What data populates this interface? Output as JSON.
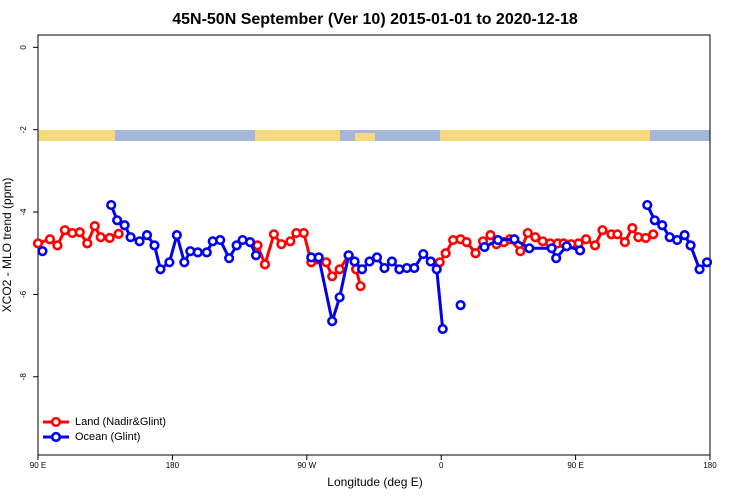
{
  "chart_data": {
    "type": "line",
    "title": "45N-50N September (Ver 10)   2015-01-01 to 2020-12-18",
    "x_label": "Longitude (deg E)",
    "y_label": "XCO2 - MLO trend (ppm)",
    "xlim": [
      90,
      540
    ],
    "ylim": [
      -9.9,
      0.3
    ],
    "xticks": [
      {
        "value": 90,
        "label": "90 E"
      },
      {
        "value": 180,
        "label": "180"
      },
      {
        "value": 270,
        "label": "90 W"
      },
      {
        "value": 360,
        "label": "0"
      },
      {
        "value": 450,
        "label": "90 E"
      },
      {
        "value": 540,
        "label": "180"
      }
    ],
    "yticks": [
      0,
      -2,
      -4,
      -6,
      -8
    ],
    "legend": "bottom-left",
    "series": [
      {
        "name": "Land (Nadir&Glint)",
        "color": "#ff0000",
        "x": [
          90,
          98,
          103,
          108,
          113,
          118,
          123,
          128,
          132,
          138,
          144,
          150,
          237,
          242,
          248,
          253,
          259,
          263,
          268,
          273,
          277,
          283,
          287,
          292,
          298,
          303,
          306,
          330,
          359,
          363,
          368,
          373,
          377,
          383,
          388,
          393,
          397,
          402,
          406,
          413,
          418,
          423,
          428,
          433,
          438,
          442,
          447,
          452,
          457,
          463,
          468,
          474,
          478,
          483,
          488,
          492,
          497,
          502
        ],
        "values": [
          -4.76,
          -4.66,
          -4.81,
          -4.44,
          -4.51,
          -4.49,
          -4.76,
          -4.34,
          -4.61,
          -4.63,
          -4.53,
          null,
          -4.81,
          -5.27,
          -4.54,
          -4.78,
          -4.71,
          -4.51,
          -4.51,
          -5.22,
          -5.15,
          -5.22,
          -5.56,
          -5.39,
          -5.05,
          -5.39,
          -5.8,
          null,
          -5.22,
          -5.0,
          -4.68,
          -4.66,
          -4.73,
          -5.0,
          -4.71,
          -4.56,
          -4.78,
          -4.73,
          -4.66,
          -4.95,
          -4.51,
          -4.61,
          -4.71,
          -4.76,
          -4.76,
          -4.76,
          -4.78,
          -4.76,
          -4.66,
          -4.81,
          -4.44,
          -4.54,
          -4.54,
          -4.73,
          -4.39,
          -4.61,
          -4.63,
          -4.54
        ]
      },
      {
        "name": "Ocean (Glint)",
        "color": "#0000ee",
        "x": [
          93,
          120,
          139,
          143,
          148,
          152,
          158,
          163,
          168,
          172,
          178,
          183,
          188,
          192,
          197,
          203,
          207,
          212,
          218,
          223,
          227,
          232,
          236,
          255,
          273,
          278,
          287,
          292,
          298,
          302,
          307,
          312,
          317,
          322,
          327,
          332,
          337,
          342,
          348,
          353,
          357,
          361,
          366,
          373,
          380,
          389,
          398,
          409,
          419,
          434,
          437,
          444,
          453,
          475,
          498,
          503,
          508,
          513,
          518,
          523,
          527,
          533,
          538
        ],
        "values": [
          -4.95,
          null,
          -3.83,
          -4.2,
          -4.32,
          -4.61,
          -4.71,
          -4.56,
          -4.81,
          -5.39,
          -5.22,
          -4.56,
          -5.22,
          -4.95,
          -4.98,
          -4.98,
          -4.71,
          -4.68,
          -5.12,
          -4.81,
          -4.68,
          -4.73,
          -5.05,
          null,
          -5.1,
          -5.1,
          -6.65,
          -6.07,
          -5.05,
          -5.2,
          -5.39,
          -5.2,
          -5.1,
          -5.36,
          -5.2,
          -5.39,
          -5.36,
          -5.36,
          -5.02,
          -5.2,
          -5.39,
          -6.84,
          null,
          -6.26,
          null,
          -4.85,
          -4.68,
          -4.66,
          -4.88,
          -4.88,
          -5.12,
          -4.83,
          -4.93,
          null,
          -3.83,
          -4.2,
          -4.32,
          -4.61,
          -4.68,
          -4.56,
          -4.81,
          -5.39,
          -5.22
        ]
      }
    ]
  }
}
